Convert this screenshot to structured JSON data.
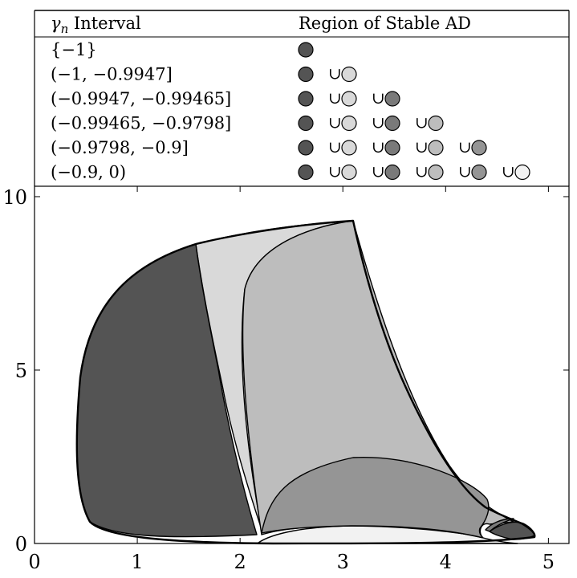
{
  "table": {
    "header": {
      "gamma_symbol": "γ",
      "gamma_subscript": "n",
      "col1_rest": " Interval",
      "col2": "Region of Stable AD"
    },
    "rows": [
      {
        "interval": "{−1}",
        "regions": [
          "r1"
        ]
      },
      {
        "interval": "(−1, −0.9947]",
        "regions": [
          "r1",
          "r2"
        ]
      },
      {
        "interval": "(−0.9947, −0.99465]",
        "regions": [
          "r1",
          "r2",
          "r3"
        ]
      },
      {
        "interval": "(−0.99465, −0.9798]",
        "regions": [
          "r1",
          "r2",
          "r3",
          "r4"
        ]
      },
      {
        "interval": "(−0.9798, −0.9]",
        "regions": [
          "r1",
          "r2",
          "r3",
          "r4",
          "r5"
        ]
      },
      {
        "interval": "(−0.9, 0)",
        "regions": [
          "r1",
          "r2",
          "r3",
          "r4",
          "r5",
          "r6"
        ]
      }
    ],
    "union_symbol": "∪"
  },
  "region_colors": {
    "r1": "#545454",
    "r2": "#d9d9d9",
    "r3": "#7a7a7a",
    "r4": "#bdbdbd",
    "r5": "#959595",
    "r6": "#f2f2f2"
  },
  "chart_data": {
    "type": "region-plot",
    "xlim": [
      0,
      5.2
    ],
    "ylim": [
      0,
      10.3
    ],
    "xticks": [
      0,
      1,
      2,
      3,
      4,
      5
    ],
    "yticks": [
      0,
      5,
      10
    ],
    "xlabel": "",
    "ylabel": ""
  }
}
